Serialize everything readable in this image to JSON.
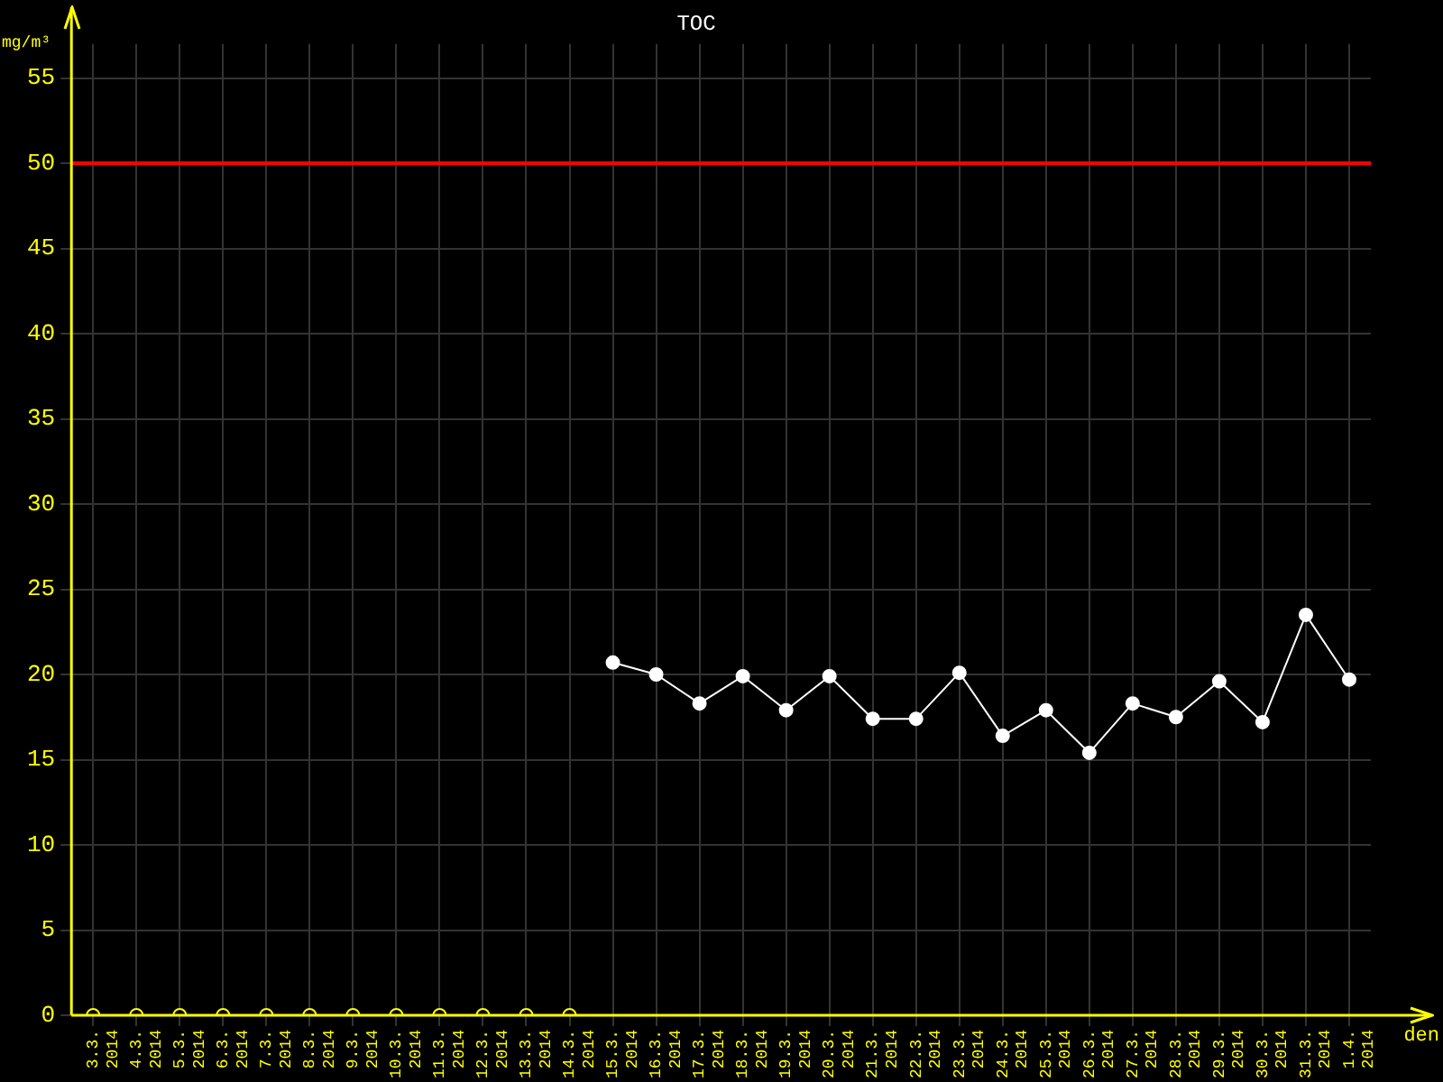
{
  "chart_data": {
    "type": "line",
    "title": "TOC",
    "xlabel": "den",
    "ylabel": "mg/m³",
    "categories": [
      "3.3. 2014",
      "4.3. 2014",
      "5.3. 2014",
      "6.3. 2014",
      "7.3. 2014",
      "8.3. 2014",
      "9.3. 2014",
      "10.3. 2014",
      "11.3. 2014",
      "12.3. 2014",
      "13.3. 2014",
      "14.3. 2014",
      "15.3. 2014",
      "16.3. 2014",
      "17.3. 2014",
      "18.3. 2014",
      "19.3. 2014",
      "20.3. 2014",
      "21.3. 2014",
      "22.3. 2014",
      "23.3. 2014",
      "24.3. 2014",
      "25.3. 2014",
      "26.3. 2014",
      "27.3. 2014",
      "28.3. 2014",
      "29.3. 2014",
      "30.3. 2014",
      "31.3. 2014",
      "1.4. 2014"
    ],
    "series": [
      {
        "type": "scatter",
        "color": "#ffff00",
        "values": [
          0,
          0,
          0,
          0,
          0,
          0,
          0,
          0,
          0,
          0,
          0,
          0,
          null,
          null,
          null,
          null,
          null,
          null,
          null,
          null,
          null,
          null,
          null,
          null,
          null,
          null,
          null,
          null,
          null,
          null
        ]
      },
      {
        "type": "line",
        "color": "#ffffff",
        "values": [
          null,
          null,
          null,
          null,
          null,
          null,
          null,
          null,
          null,
          null,
          null,
          null,
          20.7,
          20.0,
          18.3,
          19.9,
          17.9,
          19.9,
          17.4,
          17.4,
          20.1,
          16.4,
          17.9,
          15.4,
          18.3,
          17.5,
          19.6,
          17.2,
          23.5,
          19.7
        ]
      }
    ],
    "ylim": [
      0,
      57
    ],
    "yticks": [
      0,
      5,
      10,
      15,
      20,
      25,
      30,
      35,
      40,
      45,
      50,
      55
    ],
    "ref_lines": [
      {
        "axis": "y",
        "value": 50,
        "color": "#ff0000"
      }
    ],
    "grid": true,
    "legend": false,
    "marker": "circle",
    "line_style": "solid"
  }
}
